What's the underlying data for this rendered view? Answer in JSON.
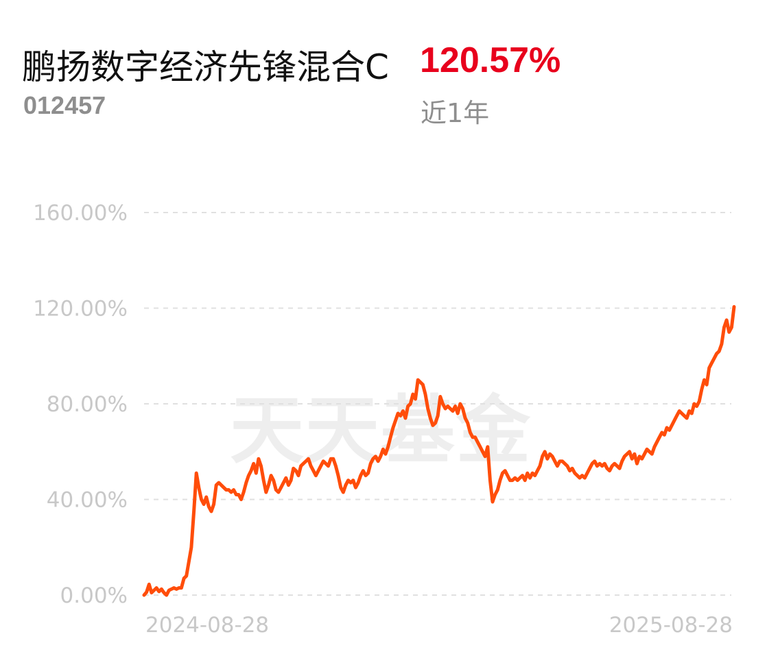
{
  "header": {
    "fund_name": "鹏扬数字经济先锋混合C",
    "fund_code": "012457",
    "return_value": "120.57%",
    "period": "近1年"
  },
  "watermark": "天天基金",
  "colors": {
    "line": "#ff4d0a",
    "return": "#e8001c",
    "grid": "#e0e0e0",
    "tick": "#c8c8c8"
  },
  "chart_data": {
    "type": "line",
    "title": "",
    "xlabel": "",
    "ylabel": "",
    "ylim": [
      0,
      160
    ],
    "yticks": [
      0,
      40,
      80,
      120,
      160
    ],
    "ytick_labels": [
      "0.00%",
      "40.00%",
      "80.00%",
      "120.00%",
      "160.00%"
    ],
    "xtick_labels": [
      "2024-08-28",
      "2025-08-28"
    ],
    "grid": "horizontal dashed",
    "series": [
      {
        "values": [
          0,
          1.2,
          4.5,
          1,
          2,
          3,
          1.5,
          2.5,
          1,
          0,
          2,
          2.5,
          3,
          2.5,
          3,
          3,
          7,
          8,
          14,
          20,
          35,
          51,
          45,
          40,
          38,
          41,
          37,
          35,
          38,
          46,
          47,
          46,
          45,
          44,
          44,
          43,
          44,
          42,
          42,
          40,
          43,
          47,
          50,
          52,
          55,
          51,
          57,
          54,
          48,
          43,
          46,
          50,
          48,
          44,
          43,
          45,
          47,
          49,
          46,
          48,
          53,
          52,
          50,
          54,
          55,
          56,
          57,
          54,
          52,
          50,
          52,
          54,
          56,
          55,
          54,
          57,
          57,
          54,
          50,
          45,
          43,
          46,
          48,
          47,
          48,
          45,
          47,
          50,
          52,
          50,
          51,
          55,
          57,
          58,
          56,
          58,
          61,
          59,
          62,
          66,
          70,
          73,
          76,
          75,
          77,
          74,
          79,
          80,
          84,
          82,
          90,
          89,
          88,
          84,
          78,
          74,
          71,
          72,
          75,
          83,
          80,
          78,
          79,
          78,
          77,
          79,
          76,
          80,
          78,
          74,
          72,
          68,
          66,
          66,
          64,
          62,
          60,
          58,
          62,
          48,
          39,
          42,
          44,
          48,
          51,
          52,
          50,
          48,
          48,
          49,
          48,
          49,
          50,
          48,
          51,
          49,
          51,
          50,
          52,
          54,
          58,
          60,
          57,
          59,
          58,
          56,
          54,
          56,
          56,
          55,
          54,
          52,
          53,
          51,
          50,
          49,
          50,
          49,
          51,
          53,
          55,
          56,
          54,
          55,
          54,
          55,
          53,
          52,
          54,
          55,
          54,
          53,
          56,
          58,
          59,
          60,
          57,
          59,
          55,
          58,
          57,
          59,
          61,
          60,
          59,
          62,
          64,
          66,
          68,
          67,
          70,
          69,
          71,
          73,
          75,
          77,
          76,
          75,
          74,
          77,
          76,
          80,
          79,
          81,
          86,
          90,
          88,
          95,
          97,
          99,
          101,
          102,
          105,
          112,
          115,
          110,
          112,
          120.57
        ]
      }
    ]
  }
}
